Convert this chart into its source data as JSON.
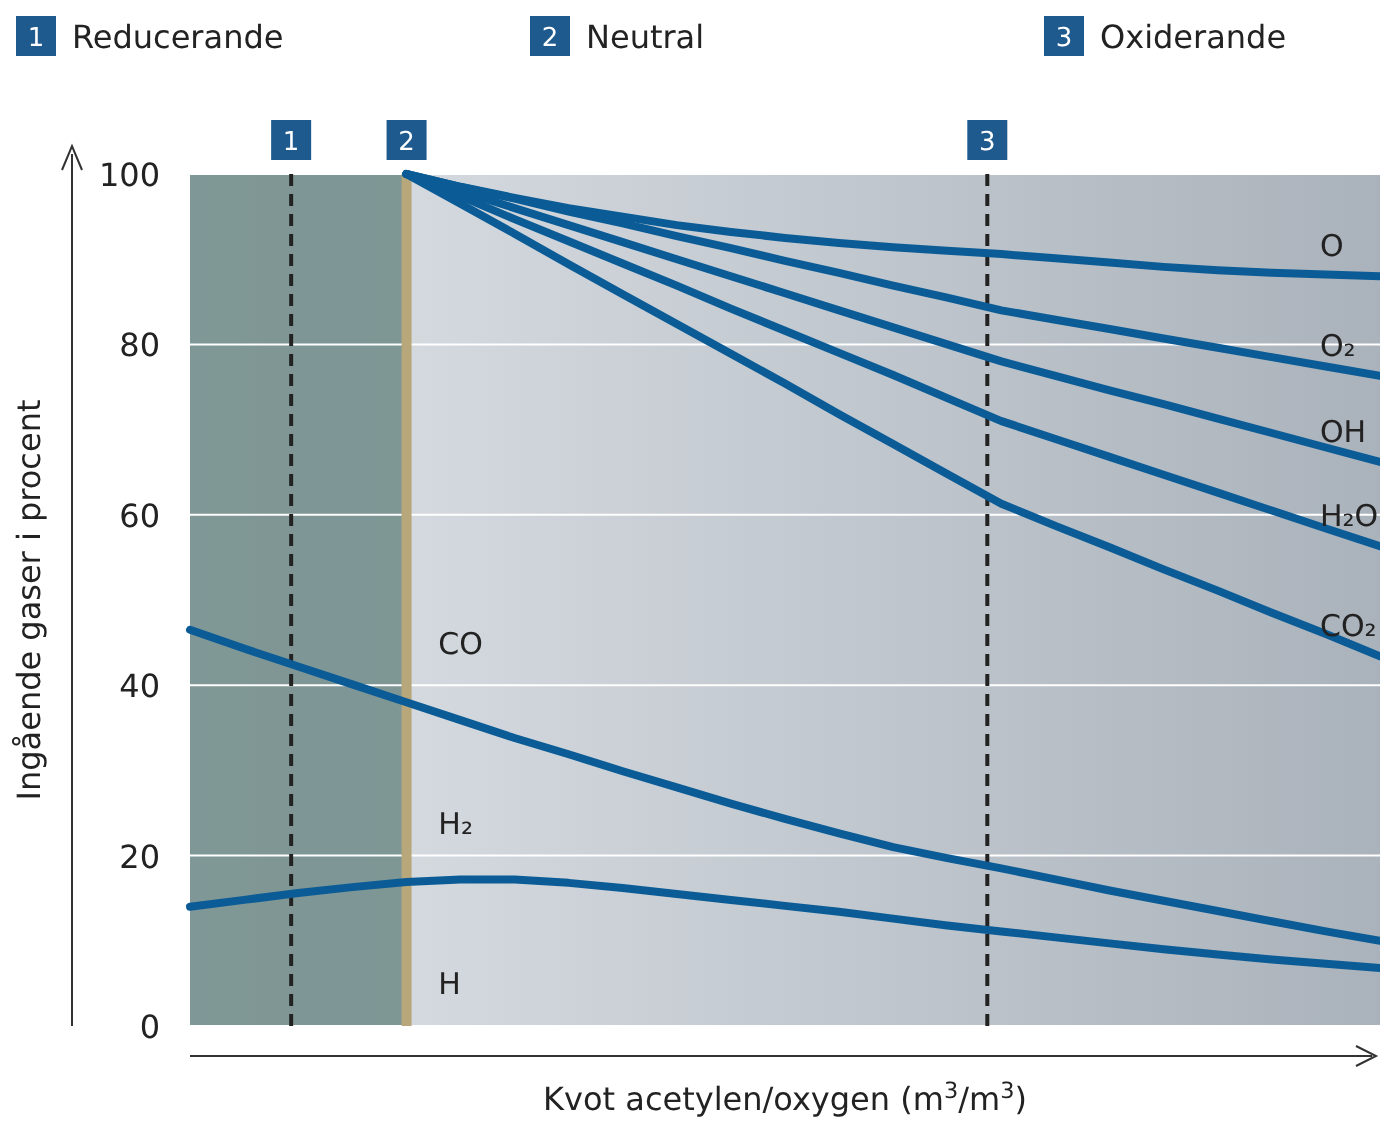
{
  "chart_data": {
    "type": "line",
    "xlabel": "Kvot acetylen/oxygen (m$^{3}$/m$^{3}$)",
    "ylabel": "Ingående gaser i procent",
    "categories": [
      null,
      null,
      null,
      null,
      null,
      null,
      null,
      null,
      null,
      null,
      null,
      null,
      null,
      null,
      null,
      null,
      null,
      null,
      null,
      null,
      null,
      null,
      null
    ],
    "series": [
      {
        "name": "O",
        "color": "#0b5c96",
        "values": [
          null,
          null,
          null,
          null,
          100,
          98.5,
          97.2,
          96,
          95,
          94,
          93.2,
          92.5,
          91.9,
          91.4,
          91,
          90.6,
          90.1,
          89.6,
          89.1,
          88.7,
          88.4,
          88.2,
          88
        ]
      },
      {
        "name": "O₂",
        "color": "#0b5c96",
        "values": [
          null,
          null,
          null,
          null,
          100,
          98.5,
          97.1,
          95.6,
          94.2,
          92.7,
          91.3,
          89.8,
          88.4,
          86.9,
          85.5,
          84,
          82.9,
          81.8,
          80.7,
          79.6,
          78.5,
          77.4,
          76.3
        ]
      },
      {
        "name": "OH",
        "color": "#0b5c96",
        "values": [
          null,
          null,
          null,
          null,
          100,
          98,
          96,
          94,
          92,
          90,
          88,
          86,
          84,
          82,
          80,
          78,
          76.3,
          74.6,
          73,
          71.3,
          69.6,
          67.9,
          66.2
        ]
      },
      {
        "name": "H₂O",
        "color": "#0b5c96",
        "values": [
          null,
          null,
          null,
          null,
          100,
          97.4,
          94.7,
          92.1,
          89.5,
          86.9,
          84.2,
          81.6,
          79,
          76.4,
          73.7,
          71,
          68.9,
          66.8,
          64.7,
          62.6,
          60.5,
          58.4,
          56.3
        ]
      },
      {
        "name": "CO₂",
        "color": "#0b5c96",
        "values": [
          null,
          null,
          null,
          null,
          100,
          96.5,
          93,
          89.4,
          85.9,
          82.4,
          78.9,
          75.4,
          71.8,
          68.3,
          64.8,
          61.3,
          58.7,
          56.2,
          53.6,
          51.1,
          48.5,
          46,
          43.4
        ]
      },
      {
        "name": "CO",
        "color": "#0b5c96",
        "values": [
          46.5,
          44.3,
          42.2,
          40.1,
          38,
          35.9,
          33.8,
          31.9,
          29.9,
          28,
          26.1,
          24.3,
          22.6,
          21,
          19.7,
          18.5,
          17.2,
          15.9,
          14.7,
          13.5,
          12.3,
          11.1,
          10
        ]
      },
      {
        "name": "H₂",
        "color": "#0b5c96",
        "values": [
          14,
          14.8,
          15.6,
          16.3,
          16.9,
          17.2,
          17.2,
          16.8,
          16.2,
          15.5,
          14.8,
          14.1,
          13.4,
          12.6,
          11.8,
          11.1,
          10.4,
          9.7,
          9,
          8.4,
          7.8,
          7.3,
          6.8
        ]
      }
    ],
    "ylim": [
      0,
      100
    ],
    "yticks": [
      0,
      20,
      40,
      60,
      80,
      100
    ],
    "grid": "y",
    "marker": "none",
    "line_style": "solid",
    "annotations": [
      "1",
      "Reducerande",
      "2",
      "Neutral",
      "3",
      "Oxiderande",
      "H"
    ]
  }
}
